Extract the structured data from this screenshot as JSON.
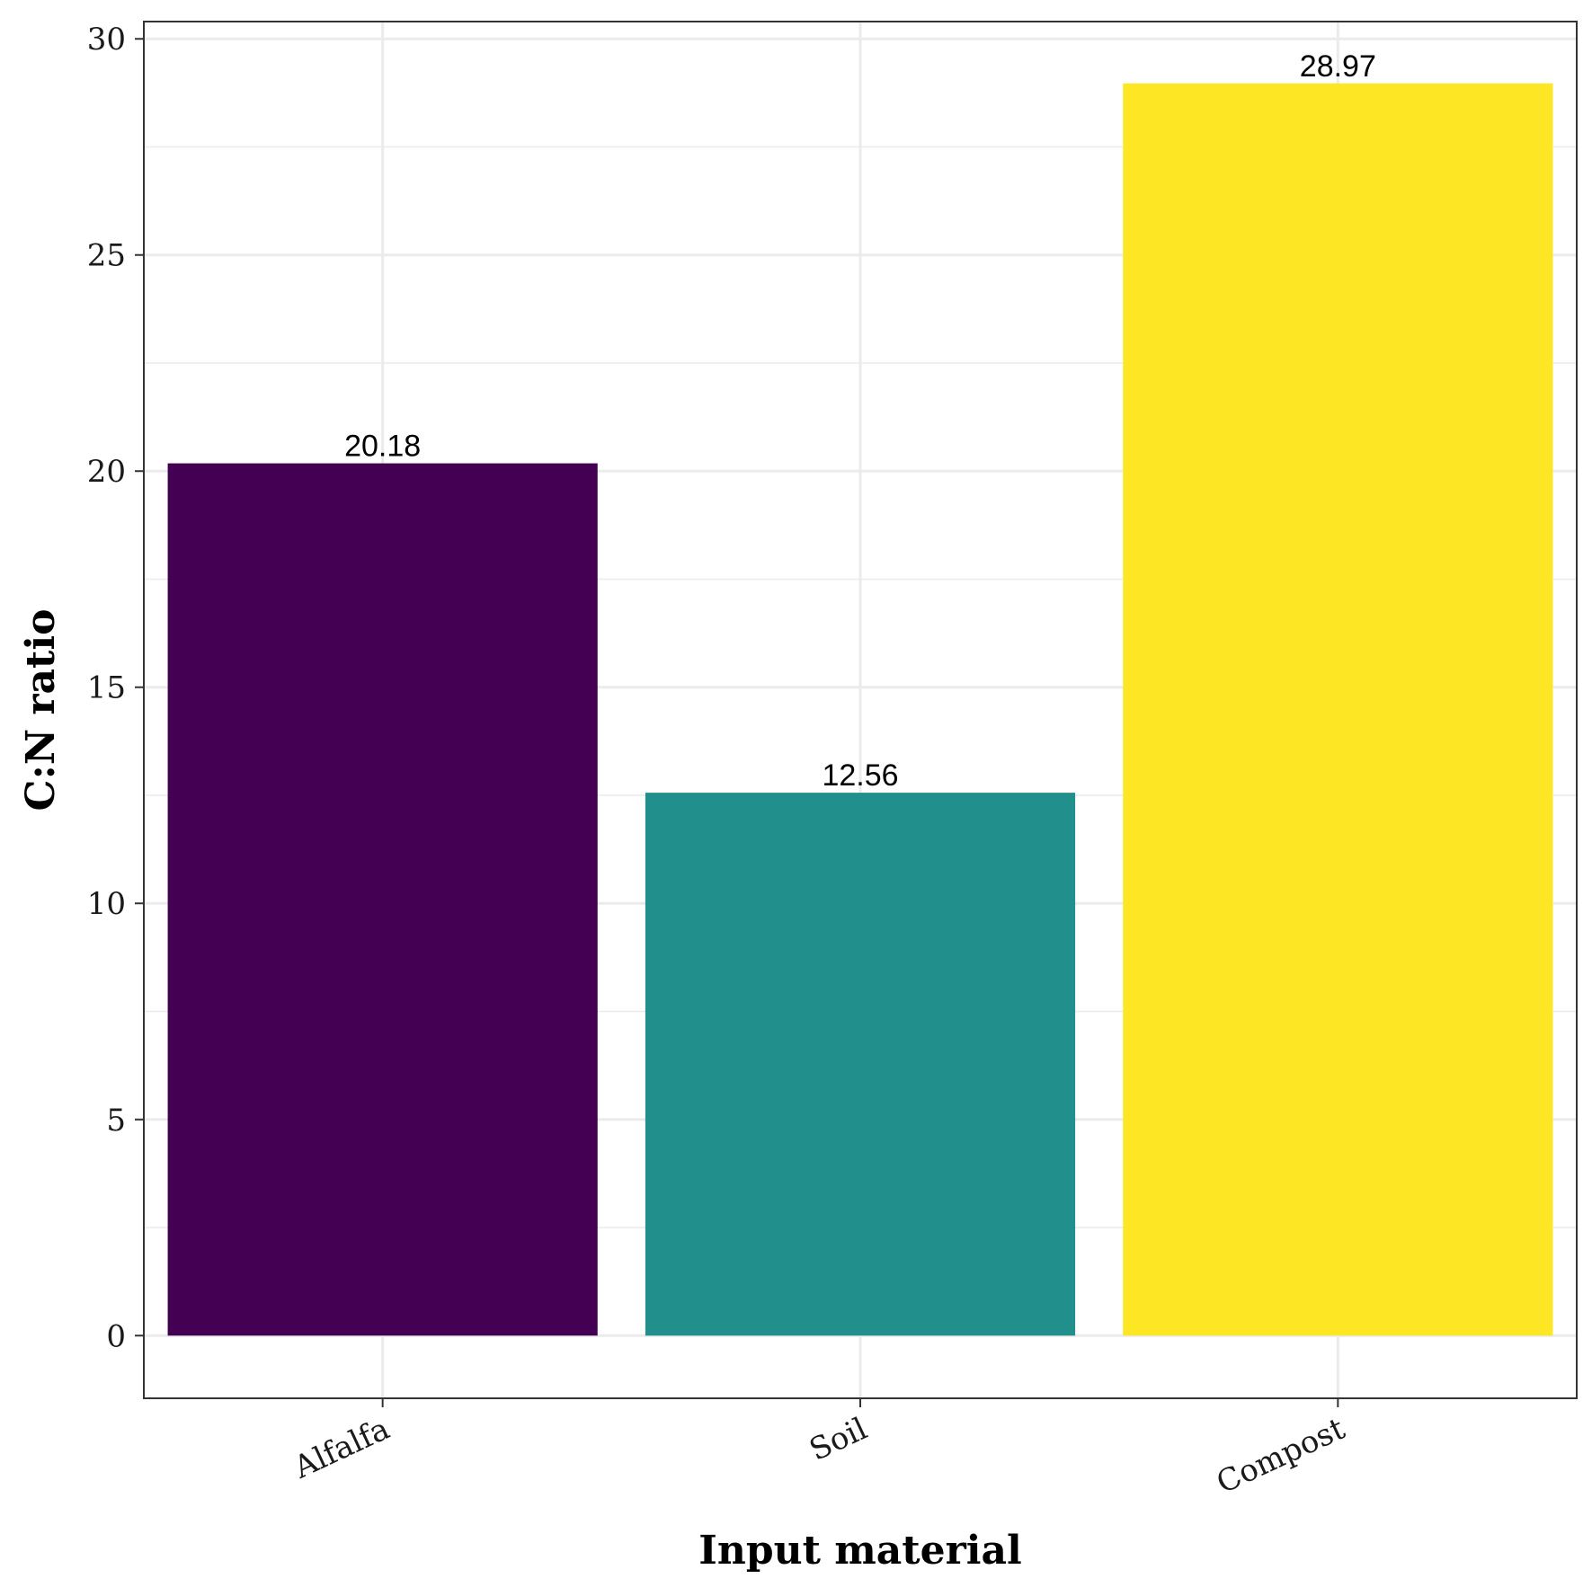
{
  "chart_data": {
    "type": "bar",
    "categories": [
      "Alfalfa",
      "Soil",
      "Compost"
    ],
    "values": [
      20.18,
      12.56,
      28.97
    ],
    "data_labels": [
      "20.18",
      "12.56",
      "28.97"
    ],
    "colors": [
      "#440154",
      "#21908C",
      "#FDE725"
    ],
    "title": "",
    "xlabel": "Input material",
    "ylabel": "C:N ratio",
    "ylim": [
      -1.45,
      30.4
    ],
    "yticks": [
      0,
      5,
      10,
      15,
      20,
      25,
      30
    ],
    "ytick_labels": [
      "0",
      "5",
      "10",
      "15",
      "20",
      "25",
      "30"
    ],
    "grid": true,
    "legend": "none"
  }
}
